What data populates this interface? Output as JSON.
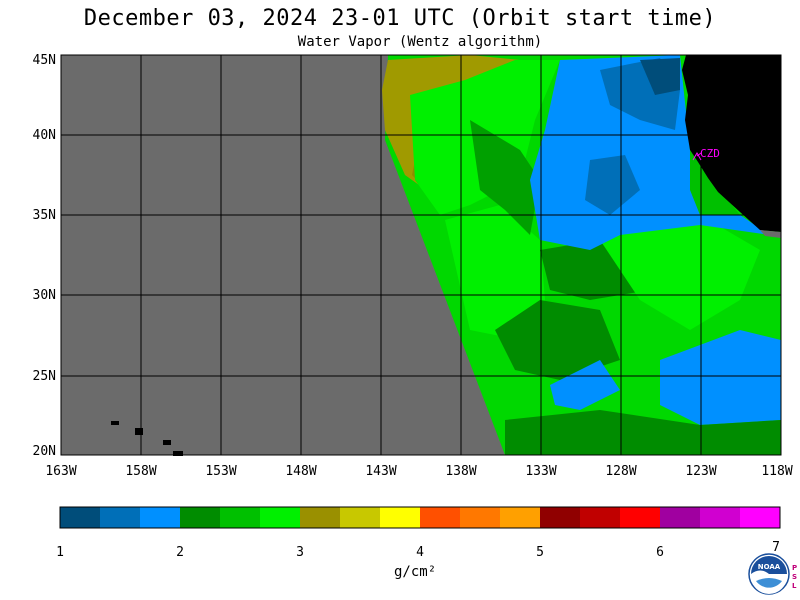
{
  "header": {
    "title": "December 03, 2024  23-01 UTC  (Orbit start time)",
    "subtitle": "Water Vapor (Wentz algorithm)"
  },
  "map": {
    "lat_labels": [
      "45N",
      "40N",
      "35N",
      "30N",
      "25N",
      "20N"
    ],
    "lon_labels": [
      "163W",
      "158W",
      "153W",
      "148W",
      "143W",
      "138W",
      "133W",
      "128W",
      "123W",
      "118W"
    ],
    "station_label": "CZD",
    "colors": {
      "no_data": "#6b6b6b",
      "land": "#000000",
      "grid": "#000000",
      "station": "#ff00ff"
    }
  },
  "colorbar": {
    "tick_labels": [
      "1",
      "2",
      "3",
      "4",
      "5",
      "6",
      "7"
    ],
    "units": "g/cm²",
    "colors": [
      "#004d7a",
      "#006fb8",
      "#0090ff",
      "#008c00",
      "#00c000",
      "#00f000",
      "#9a9000",
      "#c8c800",
      "#ffff00",
      "#ff5000",
      "#ff7800",
      "#ffa000",
      "#900000",
      "#c00000",
      "#ff0000",
      "#a000a0",
      "#d000d0",
      "#ff00ff"
    ]
  },
  "logo": {
    "text": "NOAA",
    "side_text": "PSL"
  }
}
